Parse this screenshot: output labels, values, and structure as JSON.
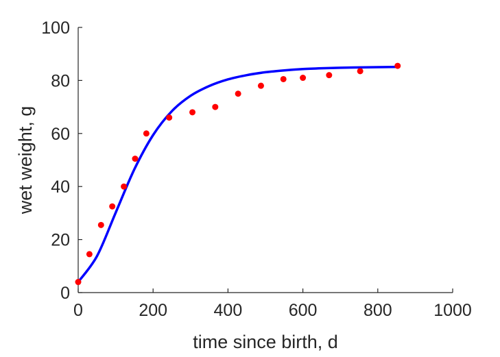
{
  "chart_data": {
    "type": "scatter",
    "title": "",
    "xlabel": "time since birth, d",
    "ylabel": "wet weight, g",
    "xlim": [
      0,
      1000
    ],
    "ylim": [
      0,
      100
    ],
    "xticks": [
      "0",
      "200",
      "400",
      "600",
      "800",
      "1000"
    ],
    "yticks": [
      "0",
      "20",
      "40",
      "60",
      "80",
      "100"
    ],
    "grid": false,
    "legend": "none",
    "series": [
      {
        "kind": "points",
        "color": "#ff0000",
        "x": [
          0,
          30,
          61,
          91,
          122,
          152,
          182,
          243,
          305,
          366,
          427,
          488,
          548,
          600,
          670,
          753,
          853
        ],
        "y": [
          4,
          14.5,
          25.5,
          32.5,
          40,
          50.5,
          60,
          66,
          68,
          70,
          75,
          78,
          80.5,
          81,
          82,
          83.5,
          85.5
        ]
      },
      {
        "kind": "line",
        "color": "#0000ff",
        "x": [
          0,
          50,
          100,
          150,
          200,
          250,
          300,
          350,
          400,
          450,
          500,
          550,
          600,
          650,
          700,
          750,
          800,
          853
        ],
        "y": [
          4,
          13.7,
          30.1,
          46.5,
          59.4,
          68.4,
          74.2,
          77.9,
          80.4,
          82.0,
          83.1,
          83.8,
          84.3,
          84.6,
          84.8,
          84.9,
          85.0,
          85.1
        ]
      }
    ]
  }
}
